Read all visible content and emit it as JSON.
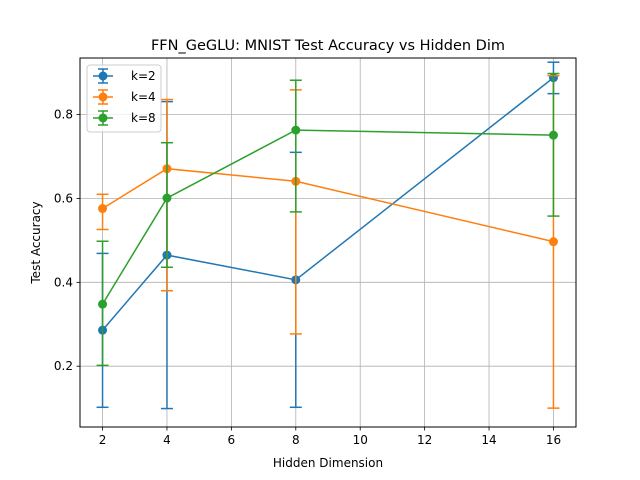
{
  "chart_data": {
    "type": "line",
    "title": "FFN_GeGLU: MNIST Test Accuracy vs Hidden Dim",
    "xlabel": "Hidden Dimension",
    "ylabel": "Test Accuracy",
    "xlim": [
      1.3,
      16.7
    ],
    "ylim": [
      0.055,
      0.935
    ],
    "xticks": [
      2,
      4,
      6,
      8,
      10,
      12,
      14,
      16
    ],
    "yticks": [
      0.2,
      0.4,
      0.6,
      0.8
    ],
    "grid": true,
    "legend_position": "top-left",
    "x": [
      2,
      4,
      8,
      16
    ],
    "series": [
      {
        "name": "k=2",
        "color": "#1f77b4",
        "values": [
          0.286,
          0.465,
          0.406,
          0.888
        ],
        "err_low": [
          0.102,
          0.099,
          0.102,
          0.85
        ],
        "err_high": [
          0.469,
          0.831,
          0.71,
          0.925
        ]
      },
      {
        "name": "k=4",
        "color": "#ff7f0e",
        "values": [
          0.576,
          0.671,
          0.641,
          0.497
        ],
        "err_low": [
          0.526,
          0.38,
          0.277,
          0.1
        ],
        "err_high": [
          0.61,
          0.836,
          0.859,
          0.893
        ]
      },
      {
        "name": "k=8",
        "color": "#2ca02c",
        "values": [
          0.348,
          0.601,
          0.763,
          0.751
        ],
        "err_low": [
          0.202,
          0.436,
          0.568,
          0.558
        ],
        "err_high": [
          0.498,
          0.733,
          0.882,
          0.898
        ]
      }
    ]
  }
}
